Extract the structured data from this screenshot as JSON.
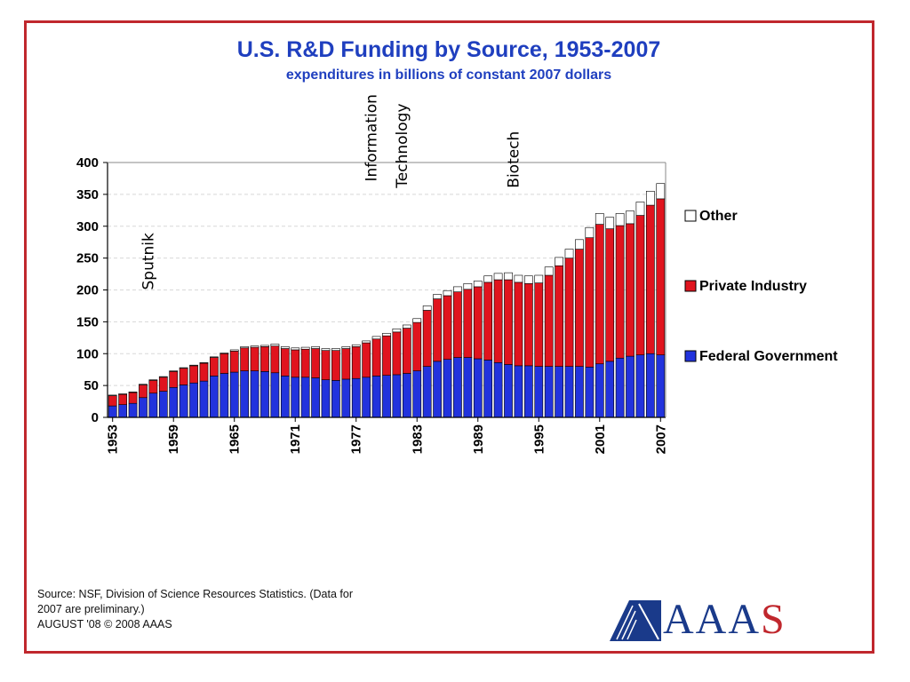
{
  "title": "U.S. R&D Funding by Source, 1953-2007",
  "subtitle": "expenditures in billions of constant 2007 dollars",
  "source_lines": [
    "Source: NSF, Division of Science Resources Statistics. (Data for",
    "2007 are preliminary.)",
    "AUGUST '08 © 2008 AAAS"
  ],
  "logo_text": "AAAS",
  "colors": {
    "federal": "#2233dd",
    "private": "#e0141e",
    "other": "#ffffff",
    "frame": "#c0272d",
    "title": "#1f3fbf"
  },
  "chart_data": {
    "type": "bar",
    "stacked": true,
    "title": "U.S. R&D Funding by Source, 1953-2007",
    "subtitle": "expenditures in billions of constant 2007 dollars",
    "xlabel": "",
    "ylabel": "",
    "ylim": [
      0,
      400
    ],
    "yticks": [
      0,
      50,
      100,
      150,
      200,
      250,
      300,
      350,
      400
    ],
    "grid": true,
    "legend_position": "right",
    "x_tick_labels": [
      "1953",
      "1959",
      "1965",
      "1971",
      "1977",
      "1983",
      "1989",
      "1995",
      "2001",
      "2007"
    ],
    "categories": [
      "1953",
      "1954",
      "1955",
      "1956",
      "1957",
      "1958",
      "1959",
      "1960",
      "1961",
      "1962",
      "1963",
      "1964",
      "1965",
      "1966",
      "1967",
      "1968",
      "1969",
      "1970",
      "1971",
      "1972",
      "1973",
      "1974",
      "1975",
      "1976",
      "1977",
      "1978",
      "1979",
      "1980",
      "1981",
      "1982",
      "1983",
      "1984",
      "1985",
      "1986",
      "1987",
      "1988",
      "1989",
      "1990",
      "1991",
      "1992",
      "1993",
      "1994",
      "1995",
      "1996",
      "1997",
      "1998",
      "1999",
      "2000",
      "2001",
      "2002",
      "2003",
      "2004",
      "2005",
      "2006",
      "2007"
    ],
    "series": [
      {
        "name": "Federal Government",
        "color": "#2233dd",
        "values": [
          18,
          20,
          22,
          31,
          38,
          41,
          47,
          51,
          54,
          57,
          65,
          69,
          71,
          73,
          73,
          72,
          70,
          65,
          63,
          63,
          62,
          59,
          58,
          60,
          61,
          63,
          65,
          66,
          67,
          69,
          73,
          80,
          88,
          91,
          94,
          94,
          92,
          90,
          86,
          83,
          81,
          81,
          80,
          80,
          80,
          80,
          80,
          79,
          84,
          88,
          93,
          96,
          98,
          100,
          98
        ]
      },
      {
        "name": "Private Industry",
        "color": "#e0141e",
        "values": [
          16,
          16,
          17,
          20,
          20,
          22,
          25,
          26,
          27,
          28,
          29,
          31,
          33,
          36,
          37,
          39,
          42,
          43,
          43,
          44,
          46,
          46,
          47,
          48,
          50,
          54,
          58,
          62,
          67,
          71,
          76,
          88,
          98,
          100,
          103,
          107,
          113,
          122,
          130,
          133,
          131,
          129,
          131,
          143,
          158,
          170,
          184,
          203,
          219,
          208,
          208,
          208,
          219,
          233,
          245
        ]
      },
      {
        "name": "Other",
        "color": "#ffffff",
        "values": [
          1,
          1,
          1,
          1,
          1,
          1,
          1,
          1,
          1,
          1,
          1,
          1,
          2,
          2,
          2,
          2,
          3,
          3,
          3,
          3,
          3,
          3,
          3,
          3,
          3,
          3,
          4,
          4,
          5,
          5,
          6,
          7,
          7,
          8,
          8,
          9,
          9,
          10,
          10,
          11,
          11,
          12,
          12,
          13,
          13,
          14,
          15,
          16,
          17,
          18,
          19,
          20,
          21,
          22,
          24
        ]
      }
    ],
    "legend": [
      {
        "label": "Other",
        "color": "#ffffff"
      },
      {
        "label": "Private Industry",
        "color": "#e0141e"
      },
      {
        "label": "Federal Government",
        "color": "#2233dd"
      }
    ],
    "annotations": [
      {
        "text": "Sputnik",
        "x": "1957",
        "y": 200
      },
      {
        "text": "Information",
        "x": "1979",
        "y": 370
      },
      {
        "text": "Technology",
        "x": "1982",
        "y": 360
      },
      {
        "text": "Biotech",
        "x": "1993",
        "y": 360
      }
    ]
  }
}
